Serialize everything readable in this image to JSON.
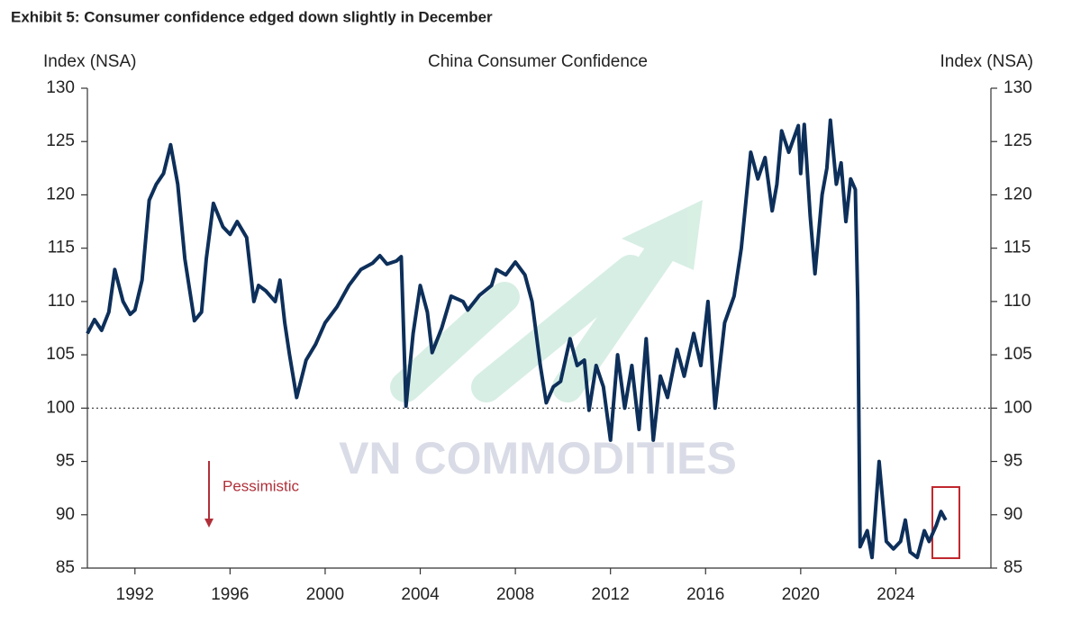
{
  "title": "Exhibit 5: Consumer confidence edged down slightly in December",
  "watermark": "VN COMMODITIES",
  "chart_data": {
    "type": "line",
    "title": "China Consumer Confidence",
    "y_label": "Index (NSA)",
    "y2_label": "Index (NSA)",
    "annotation": "Pessimistic",
    "reference_line": 100,
    "color": "#0d2f5a",
    "xlim": [
      1990,
      2028
    ],
    "xticks": [
      1992,
      1996,
      2000,
      2004,
      2008,
      2012,
      2016,
      2020,
      2024
    ],
    "ylim": [
      85,
      130
    ],
    "yticks": [
      85,
      90,
      95,
      100,
      105,
      110,
      115,
      120,
      125,
      130
    ],
    "y2lim": [
      85,
      130
    ],
    "y2ticks": [
      85,
      90,
      95,
      100,
      105,
      110,
      115,
      120,
      125,
      130
    ],
    "x": [
      1990.0,
      1990.3,
      1990.6,
      1990.9,
      1991.15,
      1991.5,
      1991.8,
      1992.0,
      1992.3,
      1992.6,
      1992.9,
      1993.2,
      1993.5,
      1993.8,
      1994.1,
      1994.5,
      1994.8,
      1995.0,
      1995.3,
      1995.7,
      1996.0,
      1996.3,
      1996.7,
      1997.0,
      1997.2,
      1997.5,
      1997.9,
      1998.1,
      1998.3,
      1998.5,
      1998.8,
      1999.2,
      1999.6,
      2000.0,
      2000.5,
      2001.0,
      2001.5,
      2002.0,
      2002.3,
      2002.6,
      2003.0,
      2003.2,
      2003.4,
      2003.7,
      2004.0,
      2004.3,
      2004.5,
      2004.9,
      2005.3,
      2005.8,
      2006.0,
      2006.5,
      2007.0,
      2007.2,
      2007.6,
      2008.0,
      2008.4,
      2008.7,
      2009.05,
      2009.3,
      2009.6,
      2009.9,
      2010.3,
      2010.6,
      2010.9,
      2011.1,
      2011.4,
      2011.7,
      2012.0,
      2012.3,
      2012.6,
      2012.9,
      2013.2,
      2013.5,
      2013.8,
      2014.1,
      2014.4,
      2014.8,
      2015.1,
      2015.5,
      2015.8,
      2016.1,
      2016.4,
      2016.8,
      2017.2,
      2017.5,
      2017.9,
      2018.2,
      2018.5,
      2018.8,
      2019.0,
      2019.2,
      2019.5,
      2019.9,
      2020.0,
      2020.15,
      2020.4,
      2020.6,
      2020.9,
      2021.1,
      2021.25,
      2021.5,
      2021.7,
      2021.9,
      2022.1,
      2022.3,
      2022.4,
      2022.5,
      2022.8,
      2023.0,
      2023.3,
      2023.6,
      2023.9,
      2024.2,
      2024.4,
      2024.6,
      2024.9,
      2025.2,
      2025.4,
      2025.7,
      2025.9,
      2026.1
    ],
    "values": [
      107,
      108.3,
      107.3,
      109,
      113,
      110,
      108.8,
      109.2,
      112,
      119.5,
      121,
      122,
      124.7,
      121,
      114,
      108.2,
      109,
      114,
      119.2,
      117,
      116.3,
      117.5,
      116,
      110,
      111.5,
      111,
      110,
      112,
      108,
      105,
      101,
      104.5,
      106,
      108,
      109.5,
      111.5,
      113,
      113.6,
      114.3,
      113.5,
      113.8,
      114.2,
      100.2,
      107,
      111.5,
      109,
      105.2,
      107.5,
      110.5,
      110,
      109.2,
      110.6,
      111.5,
      113,
      112.5,
      113.7,
      112.5,
      110,
      104,
      100.5,
      102,
      102.5,
      106.5,
      104,
      104.5,
      99.8,
      104,
      102,
      97,
      105,
      100,
      104,
      98,
      106.5,
      97,
      103,
      101,
      105.5,
      103,
      107,
      104,
      110,
      100,
      108,
      110.5,
      115,
      124,
      121.5,
      123.5,
      118.5,
      121,
      126,
      124,
      126.5,
      122,
      126.6,
      118,
      112.6,
      120,
      122.5,
      127,
      121,
      123,
      117.5,
      121.5,
      120.5,
      110,
      87,
      88.5,
      86,
      95,
      87.5,
      86.8,
      87.5,
      89.5,
      86.5,
      86,
      88.5,
      87.5,
      89,
      90.3,
      89.5
    ]
  }
}
